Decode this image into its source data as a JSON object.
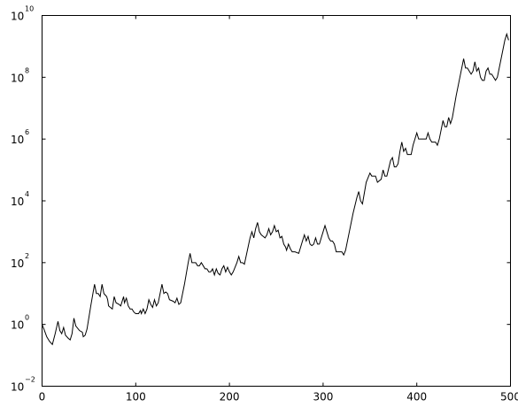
{
  "chart_data": {
    "type": "line",
    "title": "",
    "xlabel": "",
    "ylabel": "",
    "xlim": [
      0,
      500
    ],
    "ylim_log10": [
      -2,
      10
    ],
    "yscale": "log",
    "grid": false,
    "x_ticks": [
      {
        "value": 0,
        "label": "0"
      },
      {
        "value": 100,
        "label": "100"
      },
      {
        "value": 200,
        "label": "200"
      },
      {
        "value": 300,
        "label": "300"
      },
      {
        "value": 400,
        "label": "400"
      },
      {
        "value": 500,
        "label": "500"
      }
    ],
    "y_ticks": [
      {
        "value": -2,
        "base": "10",
        "exponent": "−2"
      },
      {
        "value": 0,
        "base": "10",
        "exponent": "0"
      },
      {
        "value": 2,
        "base": "10",
        "exponent": "2"
      },
      {
        "value": 4,
        "base": "10",
        "exponent": "4"
      },
      {
        "value": 6,
        "base": "10",
        "exponent": "6"
      },
      {
        "value": 8,
        "base": "10",
        "exponent": "8"
      },
      {
        "value": 10,
        "base": "10",
        "exponent": "10"
      }
    ],
    "series": [
      {
        "color": "#000000",
        "points_log10": [
          [
            0,
            0.0
          ],
          [
            2,
            -0.15
          ],
          [
            5,
            -0.4
          ],
          [
            8,
            -0.55
          ],
          [
            11,
            -0.65
          ],
          [
            14,
            -0.3
          ],
          [
            17,
            0.1
          ],
          [
            19,
            -0.2
          ],
          [
            21,
            -0.3
          ],
          [
            23,
            -0.1
          ],
          [
            25,
            -0.35
          ],
          [
            28,
            -0.45
          ],
          [
            30,
            -0.5
          ],
          [
            32,
            -0.3
          ],
          [
            34,
            0.2
          ],
          [
            36,
            -0.05
          ],
          [
            40,
            -0.2
          ],
          [
            43,
            -0.25
          ],
          [
            44,
            -0.4
          ],
          [
            46,
            -0.35
          ],
          [
            48,
            -0.15
          ],
          [
            52,
            0.6
          ],
          [
            56,
            1.3
          ],
          [
            58,
            1.0
          ],
          [
            60,
            1.0
          ],
          [
            62,
            0.9
          ],
          [
            64,
            1.3
          ],
          [
            66,
            1.0
          ],
          [
            69,
            0.9
          ],
          [
            70,
            0.8
          ],
          [
            71,
            0.6
          ],
          [
            73,
            0.55
          ],
          [
            75,
            0.5
          ],
          [
            77,
            0.9
          ],
          [
            79,
            0.7
          ],
          [
            82,
            0.65
          ],
          [
            84,
            0.6
          ],
          [
            86,
            0.8
          ],
          [
            87,
            0.9
          ],
          [
            88,
            0.7
          ],
          [
            90,
            0.85
          ],
          [
            92,
            0.6
          ],
          [
            94,
            0.5
          ],
          [
            96,
            0.5
          ],
          [
            98,
            0.4
          ],
          [
            100,
            0.35
          ],
          [
            103,
            0.35
          ],
          [
            105,
            0.45
          ],
          [
            106,
            0.35
          ],
          [
            108,
            0.5
          ],
          [
            110,
            0.35
          ],
          [
            112,
            0.5
          ],
          [
            114,
            0.8
          ],
          [
            116,
            0.65
          ],
          [
            118,
            0.55
          ],
          [
            120,
            0.8
          ],
          [
            122,
            0.6
          ],
          [
            124,
            0.7
          ],
          [
            126,
            1.0
          ],
          [
            128,
            1.3
          ],
          [
            130,
            1.0
          ],
          [
            132,
            1.05
          ],
          [
            134,
            1.0
          ],
          [
            136,
            0.8
          ],
          [
            140,
            0.75
          ],
          [
            142,
            0.7
          ],
          [
            144,
            0.85
          ],
          [
            146,
            0.65
          ],
          [
            148,
            0.7
          ],
          [
            152,
            1.3
          ],
          [
            156,
            2.0
          ],
          [
            158,
            2.3
          ],
          [
            160,
            2.0
          ],
          [
            164,
            2.0
          ],
          [
            166,
            1.9
          ],
          [
            168,
            1.9
          ],
          [
            170,
            2.0
          ],
          [
            172,
            1.9
          ],
          [
            174,
            1.8
          ],
          [
            176,
            1.8
          ],
          [
            178,
            1.7
          ],
          [
            180,
            1.7
          ],
          [
            182,
            1.8
          ],
          [
            184,
            1.6
          ],
          [
            186,
            1.8
          ],
          [
            188,
            1.65
          ],
          [
            190,
            1.6
          ],
          [
            192,
            1.8
          ],
          [
            194,
            1.9
          ],
          [
            196,
            1.7
          ],
          [
            198,
            1.85
          ],
          [
            200,
            1.7
          ],
          [
            202,
            1.6
          ],
          [
            204,
            1.7
          ],
          [
            206,
            1.85
          ],
          [
            208,
            2.0
          ],
          [
            210,
            2.2
          ],
          [
            212,
            2.0
          ],
          [
            214,
            2.0
          ],
          [
            216,
            1.95
          ],
          [
            222,
            2.8
          ],
          [
            224,
            3.0
          ],
          [
            226,
            2.8
          ],
          [
            228,
            3.1
          ],
          [
            230,
            3.3
          ],
          [
            232,
            3.0
          ],
          [
            234,
            2.9
          ],
          [
            236,
            2.85
          ],
          [
            238,
            2.8
          ],
          [
            240,
            2.9
          ],
          [
            242,
            3.1
          ],
          [
            244,
            2.9
          ],
          [
            246,
            3.0
          ],
          [
            248,
            3.2
          ],
          [
            250,
            3.0
          ],
          [
            252,
            3.05
          ],
          [
            254,
            2.8
          ],
          [
            256,
            2.85
          ],
          [
            258,
            2.6
          ],
          [
            260,
            2.5
          ],
          [
            261,
            2.4
          ],
          [
            263,
            2.6
          ],
          [
            265,
            2.45
          ],
          [
            267,
            2.35
          ],
          [
            270,
            2.35
          ],
          [
            274,
            2.3
          ],
          [
            278,
            2.7
          ],
          [
            280,
            2.9
          ],
          [
            282,
            2.7
          ],
          [
            284,
            2.85
          ],
          [
            286,
            2.6
          ],
          [
            288,
            2.55
          ],
          [
            290,
            2.6
          ],
          [
            292,
            2.8
          ],
          [
            294,
            2.6
          ],
          [
            296,
            2.6
          ],
          [
            298,
            2.8
          ],
          [
            300,
            3.0
          ],
          [
            302,
            3.2
          ],
          [
            304,
            3.0
          ],
          [
            306,
            2.8
          ],
          [
            308,
            2.7
          ],
          [
            310,
            2.7
          ],
          [
            312,
            2.6
          ],
          [
            314,
            2.35
          ],
          [
            320,
            2.35
          ],
          [
            322,
            2.25
          ],
          [
            324,
            2.4
          ],
          [
            328,
            3.0
          ],
          [
            332,
            3.6
          ],
          [
            336,
            4.1
          ],
          [
            338,
            4.3
          ],
          [
            340,
            4.0
          ],
          [
            342,
            3.9
          ],
          [
            346,
            4.6
          ],
          [
            350,
            4.9
          ],
          [
            352,
            4.8
          ],
          [
            356,
            4.8
          ],
          [
            358,
            4.6
          ],
          [
            362,
            4.7
          ],
          [
            364,
            5.0
          ],
          [
            366,
            4.8
          ],
          [
            368,
            4.8
          ],
          [
            372,
            5.3
          ],
          [
            374,
            5.4
          ],
          [
            376,
            5.1
          ],
          [
            378,
            5.1
          ],
          [
            380,
            5.2
          ],
          [
            382,
            5.6
          ],
          [
            384,
            5.9
          ],
          [
            386,
            5.6
          ],
          [
            388,
            5.7
          ],
          [
            390,
            5.5
          ],
          [
            394,
            5.5
          ],
          [
            396,
            5.8
          ],
          [
            400,
            6.2
          ],
          [
            402,
            6.0
          ],
          [
            406,
            6.0
          ],
          [
            410,
            6.0
          ],
          [
            412,
            6.2
          ],
          [
            414,
            6.0
          ],
          [
            416,
            5.9
          ],
          [
            420,
            5.9
          ],
          [
            422,
            5.8
          ],
          [
            424,
            6.0
          ],
          [
            426,
            6.3
          ],
          [
            428,
            6.6
          ],
          [
            430,
            6.4
          ],
          [
            432,
            6.4
          ],
          [
            434,
            6.7
          ],
          [
            436,
            6.5
          ],
          [
            438,
            6.7
          ],
          [
            442,
            7.4
          ],
          [
            446,
            8.0
          ],
          [
            448,
            8.3
          ],
          [
            450,
            8.6
          ],
          [
            452,
            8.3
          ],
          [
            454,
            8.3
          ],
          [
            456,
            8.2
          ],
          [
            458,
            8.1
          ],
          [
            460,
            8.2
          ],
          [
            462,
            8.5
          ],
          [
            464,
            8.2
          ],
          [
            466,
            8.3
          ],
          [
            468,
            8.0
          ],
          [
            470,
            7.9
          ],
          [
            472,
            7.9
          ],
          [
            474,
            8.2
          ],
          [
            476,
            8.3
          ],
          [
            478,
            8.1
          ],
          [
            480,
            8.1
          ],
          [
            482,
            8.0
          ],
          [
            484,
            7.9
          ],
          [
            486,
            8.0
          ],
          [
            490,
            8.6
          ],
          [
            494,
            9.2
          ],
          [
            496,
            9.4
          ],
          [
            498,
            9.2
          ]
        ]
      }
    ]
  }
}
